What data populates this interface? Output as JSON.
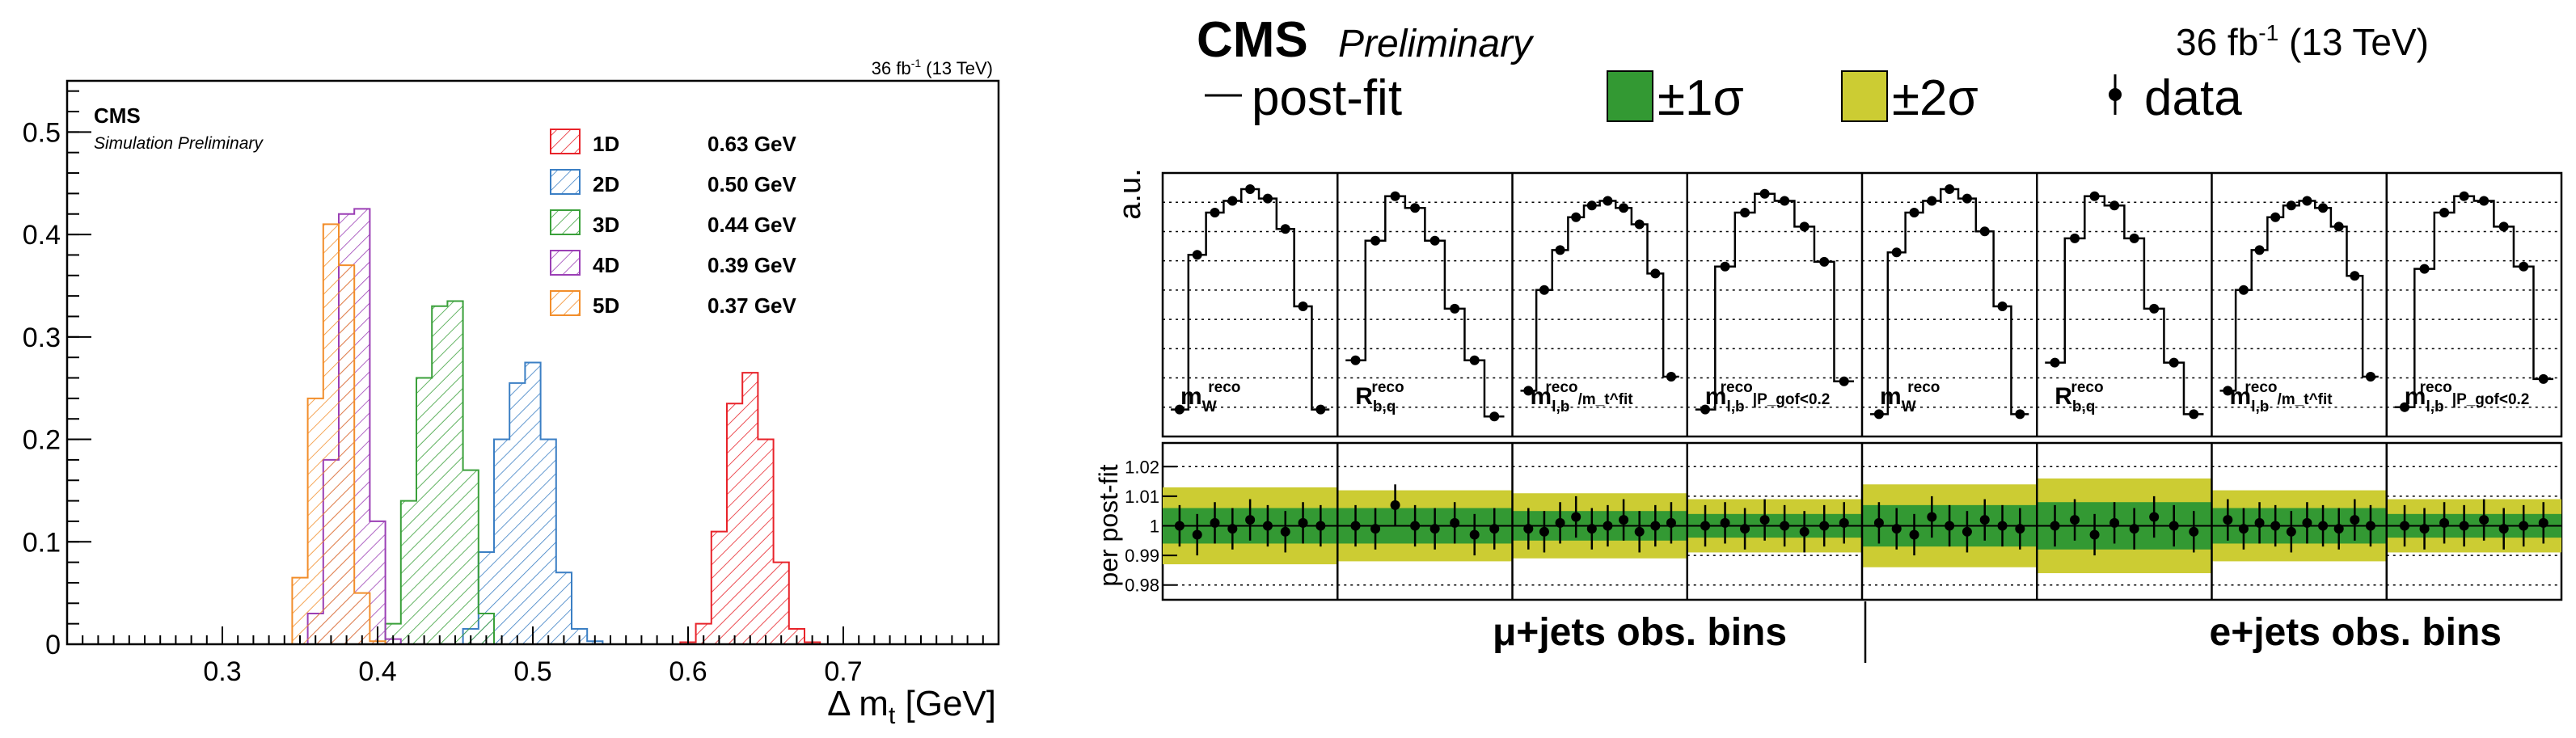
{
  "chart_data": [
    {
      "type": "histogram",
      "title": "",
      "xlabel": "Δ m_t [GeV]",
      "ylabel": "",
      "xlim": [
        0.2,
        0.8
      ],
      "ylim": [
        0,
        0.55
      ],
      "x_ticks": [
        "0.3",
        "0.4",
        "0.5",
        "0.6",
        "0.7"
      ],
      "y_ticks": [
        "0",
        "0.1",
        "0.2",
        "0.3",
        "0.4",
        "0.5"
      ],
      "experiment": "CMS",
      "subtitle": "Simulation Preliminary",
      "lumi": "36 fb",
      "lumi_sup": "-1",
      "lumi_energy": " (13 TeV)",
      "bin_width": 0.01,
      "series": [
        {
          "name": "1D",
          "value_label": "0.63 GeV",
          "color": "#e8232a",
          "x": [
            0.6,
            0.61,
            0.62,
            0.63,
            0.64,
            0.65,
            0.66,
            0.67,
            0.68
          ],
          "values": [
            0.002,
            0.02,
            0.11,
            0.235,
            0.265,
            0.2,
            0.08,
            0.015,
            0.002
          ]
        },
        {
          "name": "2D",
          "value_label": "0.50 GeV",
          "color": "#3b7fc4",
          "x": [
            0.46,
            0.47,
            0.48,
            0.49,
            0.5,
            0.51,
            0.52,
            0.53,
            0.54
          ],
          "values": [
            0.015,
            0.09,
            0.2,
            0.255,
            0.275,
            0.2,
            0.07,
            0.015,
            0.003
          ]
        },
        {
          "name": "3D",
          "value_label": "0.44 GeV",
          "color": "#3aa03a",
          "x": [
            0.41,
            0.42,
            0.43,
            0.44,
            0.45,
            0.46,
            0.47
          ],
          "values": [
            0.02,
            0.14,
            0.26,
            0.33,
            0.335,
            0.17,
            0.03
          ]
        },
        {
          "name": "4D",
          "value_label": "0.39 GeV",
          "color": "#9b3fb5",
          "x": [
            0.36,
            0.37,
            0.38,
            0.39,
            0.4,
            0.41
          ],
          "values": [
            0.03,
            0.18,
            0.42,
            0.425,
            0.12,
            0.005
          ]
        },
        {
          "name": "5D",
          "value_label": "0.37 GeV",
          "color": "#f28e2b",
          "x": [
            0.35,
            0.36,
            0.37,
            0.38,
            0.39,
            0.4
          ],
          "values": [
            0.065,
            0.24,
            0.41,
            0.37,
            0.05,
            0.003
          ]
        }
      ]
    },
    {
      "type": "fit-panels",
      "experiment": "CMS",
      "subtitle": "Preliminary",
      "lumi": "36 fb",
      "lumi_sup": "-1",
      "lumi_energy": " (13 TeV)",
      "legend": [
        {
          "label": "post-fit",
          "kind": "line",
          "color": "#000000"
        },
        {
          "label": "±1σ",
          "kind": "box",
          "color": "#339933"
        },
        {
          "label": "±2σ",
          "kind": "box",
          "color": "#cccc33"
        },
        {
          "label": "data",
          "kind": "marker",
          "color": "#000000"
        }
      ],
      "top_ylabel": "a.u.",
      "bottom_ylabel": "per post-fit",
      "bottom_ylim": [
        0.975,
        1.028
      ],
      "bottom_ticks": [
        "0.98",
        "0.99",
        "1",
        "1.01",
        "1.02"
      ],
      "bottom_tick_values": [
        0.98,
        0.99,
        1.0,
        1.01,
        1.02
      ],
      "region_labels": [
        "μ+jets obs. bins",
        "e+jets obs. bins"
      ],
      "panels": [
        {
          "label": "m",
          "sup": "reco",
          "sub": "W",
          "tail": "",
          "values": [
            0.06,
            0.72,
            0.9,
            0.95,
            1.0,
            0.96,
            0.83,
            0.5,
            0.06
          ],
          "one_sigma": 0.006,
          "two_sigma": 0.013,
          "ratio": [
            1.0,
            0.997,
            1.001,
            0.999,
            1.002,
            1.0,
            0.998,
            1.001,
            1.0
          ]
        },
        {
          "label": "R",
          "sup": "reco",
          "sub": "b,q",
          "tail": "",
          "values": [
            0.27,
            0.78,
            0.97,
            0.92,
            0.78,
            0.49,
            0.27,
            0.03
          ],
          "one_sigma": 0.006,
          "two_sigma": 0.012,
          "ratio": [
            1.0,
            0.999,
            1.007,
            1.0,
            0.999,
            1.001,
            0.997,
            0.999
          ]
        },
        {
          "label": "m",
          "sup": "reco",
          "sub": "l,b",
          "tail": "/m_t^fit",
          "values": [
            0.14,
            0.57,
            0.74,
            0.88,
            0.93,
            0.95,
            0.92,
            0.85,
            0.64,
            0.2
          ],
          "one_sigma": 0.005,
          "two_sigma": 0.011,
          "ratio": [
            0.999,
            0.998,
            1.001,
            1.003,
            0.999,
            1.0,
            1.002,
            0.998,
            1.0,
            1.001
          ]
        },
        {
          "label": "m",
          "sup": "reco",
          "sub": "l,b",
          "tail": "|P_gof<0.2",
          "values": [
            0.06,
            0.67,
            0.9,
            0.98,
            0.95,
            0.84,
            0.69,
            0.18
          ],
          "one_sigma": 0.004,
          "two_sigma": 0.009,
          "ratio": [
            1.0,
            1.001,
            0.999,
            1.002,
            1.0,
            0.998,
            1.0,
            1.001
          ]
        },
        {
          "label": "m",
          "sup": "reco",
          "sub": "W",
          "tail": "",
          "values": [
            0.04,
            0.73,
            0.9,
            0.95,
            1.0,
            0.96,
            0.82,
            0.5,
            0.04
          ],
          "one_sigma": 0.007,
          "two_sigma": 0.014,
          "ratio": [
            1.001,
            0.999,
            0.997,
            1.003,
            1.0,
            0.998,
            1.002,
            1.0,
            0.999
          ]
        },
        {
          "label": "R",
          "sup": "reco",
          "sub": "b,q",
          "tail": "",
          "values": [
            0.26,
            0.79,
            0.97,
            0.93,
            0.79,
            0.49,
            0.26,
            0.04
          ],
          "one_sigma": 0.008,
          "two_sigma": 0.016,
          "ratio": [
            1.0,
            1.002,
            0.997,
            1.001,
            0.999,
            1.003,
            1.0,
            0.998
          ]
        },
        {
          "label": "m",
          "sup": "reco",
          "sub": "l,b",
          "tail": "/m_t^fit",
          "values": [
            0.14,
            0.57,
            0.74,
            0.88,
            0.93,
            0.95,
            0.92,
            0.84,
            0.63,
            0.2
          ],
          "one_sigma": 0.006,
          "two_sigma": 0.012,
          "ratio": [
            1.002,
            0.999,
            1.001,
            1.0,
            0.998,
            1.001,
            1.0,
            0.999,
            1.002,
            1.0
          ]
        },
        {
          "label": "m",
          "sup": "reco",
          "sub": "l,b",
          "tail": "|P_gof<0.2",
          "values": [
            0.07,
            0.66,
            0.9,
            0.97,
            0.95,
            0.84,
            0.67,
            0.19
          ],
          "one_sigma": 0.004,
          "two_sigma": 0.009,
          "ratio": [
            1.0,
            0.999,
            1.001,
            1.0,
            1.002,
            0.999,
            1.0,
            1.001
          ]
        }
      ]
    }
  ]
}
